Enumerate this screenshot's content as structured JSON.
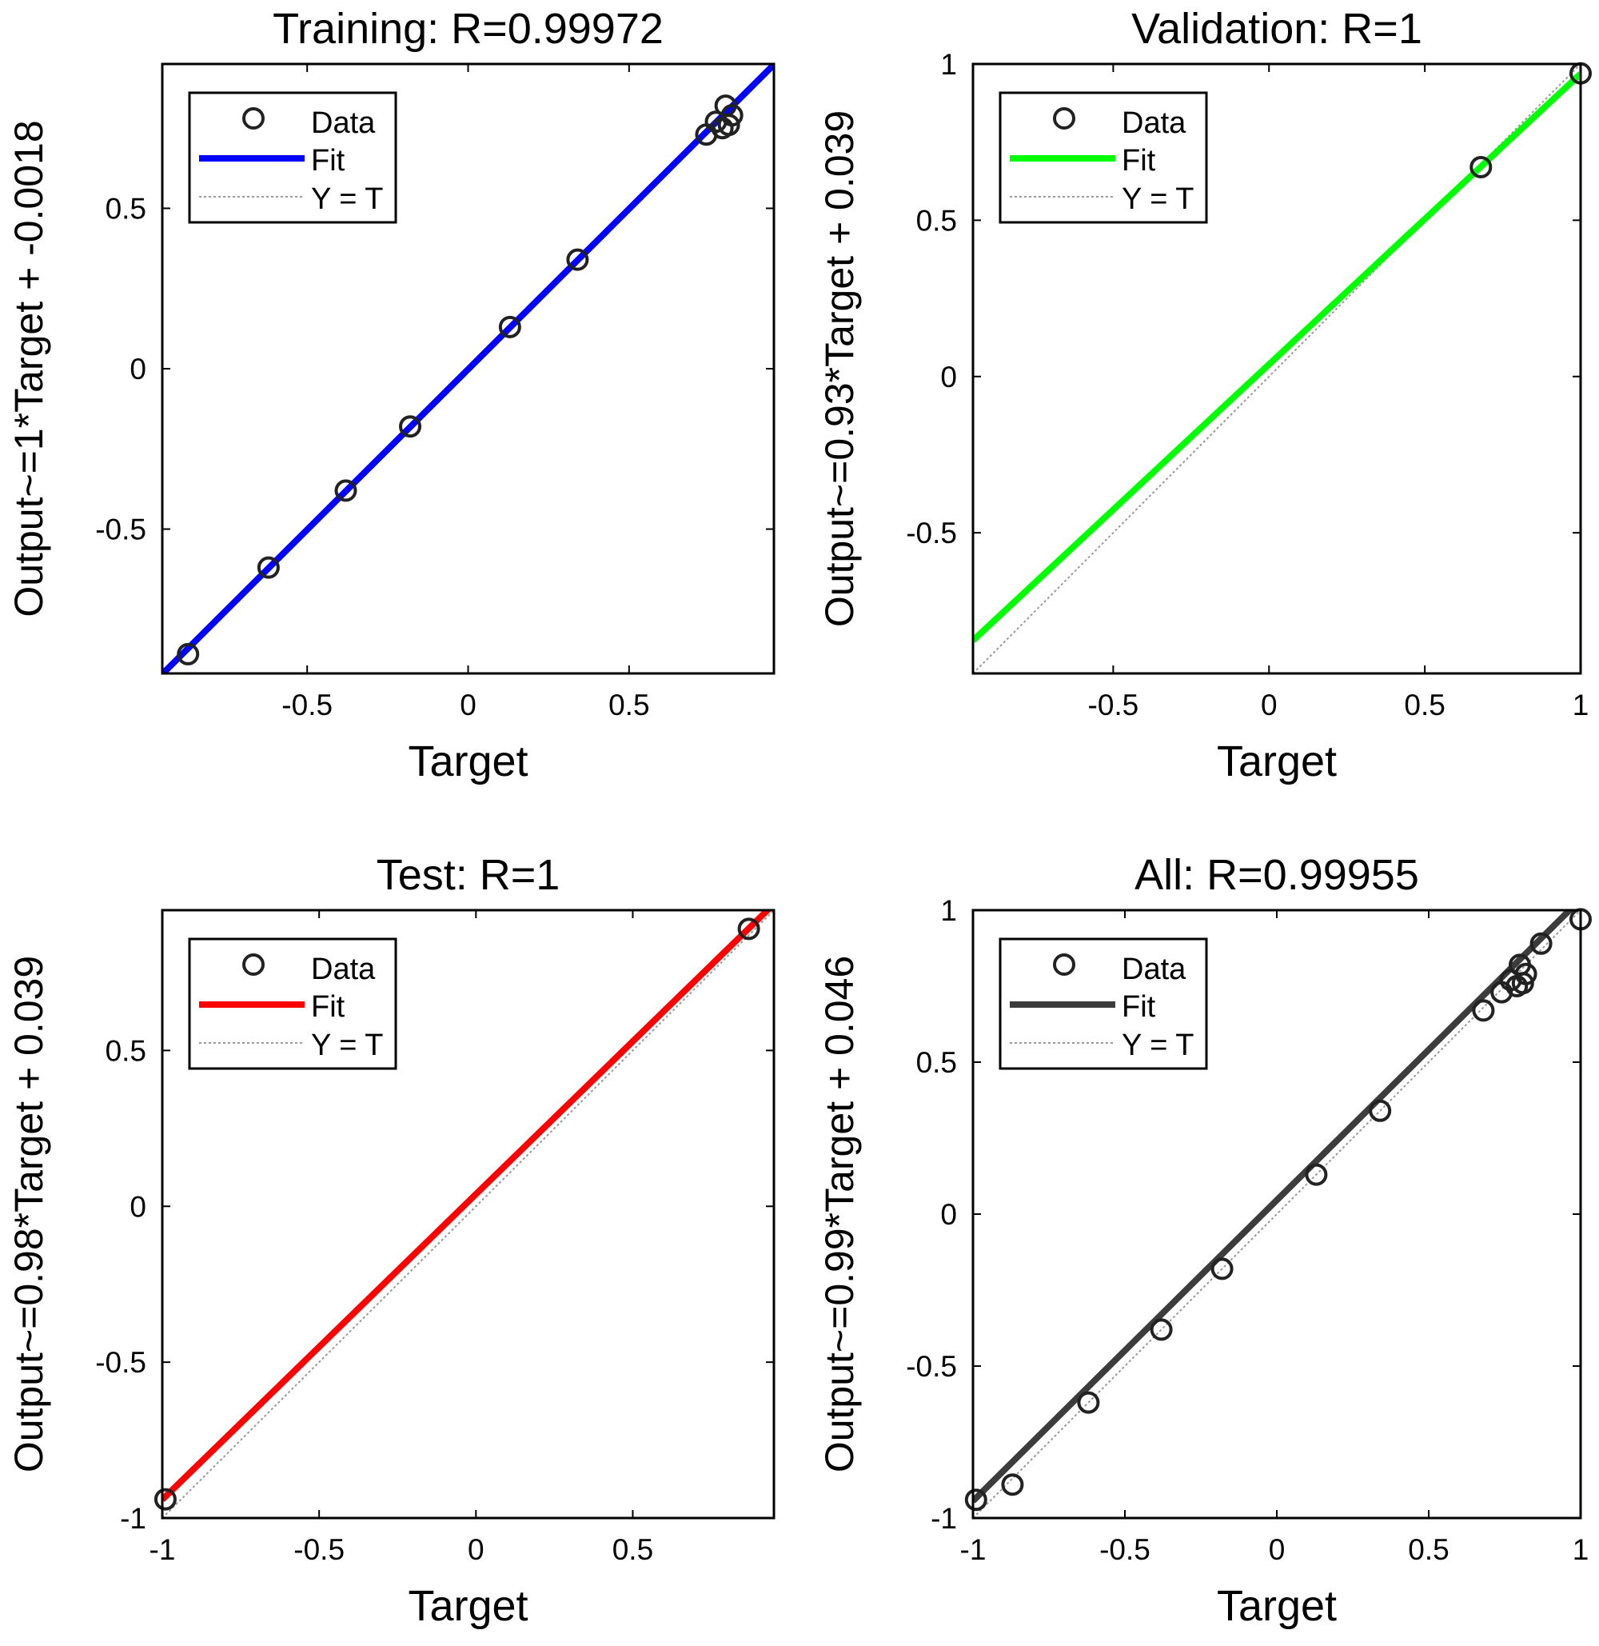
{
  "chart_data": [
    {
      "id": "training",
      "type": "scatter",
      "title": "Training: R=0.99972",
      "xlabel": "Target",
      "ylabel": "Output~=1*Target + -0.0018",
      "xlim": [
        -0.95,
        0.95
      ],
      "ylim": [
        -0.95,
        0.95
      ],
      "xticks": [
        -0.5,
        0,
        0.5
      ],
      "yticks": [
        -0.5,
        0,
        0.5
      ],
      "fit": {
        "slope": 1,
        "intercept": -0.0018,
        "color": "#0000ff"
      },
      "data": {
        "x": [
          -0.87,
          -0.62,
          -0.38,
          -0.18,
          0.13,
          0.34,
          0.74,
          0.77,
          0.79,
          0.81,
          0.82,
          0.8
        ],
        "y": [
          -0.89,
          -0.62,
          -0.38,
          -0.18,
          0.13,
          0.34,
          0.73,
          0.77,
          0.75,
          0.76,
          0.79,
          0.82
        ]
      },
      "legend": {
        "data": "Data",
        "fit": "Fit",
        "yt": "Y = T"
      }
    },
    {
      "id": "validation",
      "type": "scatter",
      "title": "Validation: R=1",
      "xlabel": "Target",
      "ylabel": "Output~=0.93*Target + 0.039",
      "xlim": [
        -0.95,
        1.0
      ],
      "ylim": [
        -0.95,
        1.0
      ],
      "xticks": [
        -0.5,
        0,
        0.5,
        1
      ],
      "yticks": [
        -0.5,
        0,
        0.5,
        1
      ],
      "fit": {
        "slope": 0.93,
        "intercept": 0.039,
        "color": "#00ff00"
      },
      "data": {
        "x": [
          0.68,
          1.0
        ],
        "y": [
          0.67,
          0.97
        ]
      },
      "legend": {
        "data": "Data",
        "fit": "Fit",
        "yt": "Y = T"
      }
    },
    {
      "id": "test",
      "type": "scatter",
      "title": "Test: R=1",
      "xlabel": "Target",
      "ylabel": "Output~=0.98*Target + 0.039",
      "xlim": [
        -1.0,
        0.95
      ],
      "ylim": [
        -1.0,
        0.95
      ],
      "xticks": [
        -1,
        -0.5,
        0,
        0.5
      ],
      "yticks": [
        -1,
        -0.5,
        0,
        0.5
      ],
      "fit": {
        "slope": 0.98,
        "intercept": 0.039,
        "color": "#ff0000"
      },
      "data": {
        "x": [
          -0.99,
          0.87
        ],
        "y": [
          -0.94,
          0.89
        ]
      },
      "legend": {
        "data": "Data",
        "fit": "Fit",
        "yt": "Y = T"
      }
    },
    {
      "id": "all",
      "type": "scatter",
      "title": "All: R=0.99955",
      "xlabel": "Target",
      "ylabel": "Output~=0.99*Target + 0.046",
      "xlim": [
        -1.0,
        1.0
      ],
      "ylim": [
        -1.0,
        1.0
      ],
      "xticks": [
        -1,
        -0.5,
        0,
        0.5,
        1
      ],
      "yticks": [
        -1,
        -0.5,
        0,
        0.5,
        1
      ],
      "fit": {
        "slope": 0.99,
        "intercept": 0.046,
        "color": "#3c3c3c"
      },
      "data": {
        "x": [
          -0.99,
          -0.87,
          -0.62,
          -0.38,
          -0.18,
          0.13,
          0.34,
          0.68,
          0.74,
          0.77,
          0.79,
          0.81,
          0.82,
          0.8,
          0.87,
          1.0
        ],
        "y": [
          -0.94,
          -0.89,
          -0.62,
          -0.38,
          -0.18,
          0.13,
          0.34,
          0.67,
          0.73,
          0.77,
          0.75,
          0.76,
          0.79,
          0.82,
          0.89,
          0.97
        ]
      },
      "legend": {
        "data": "Data",
        "fit": "Fit",
        "yt": "Y = T"
      }
    }
  ]
}
